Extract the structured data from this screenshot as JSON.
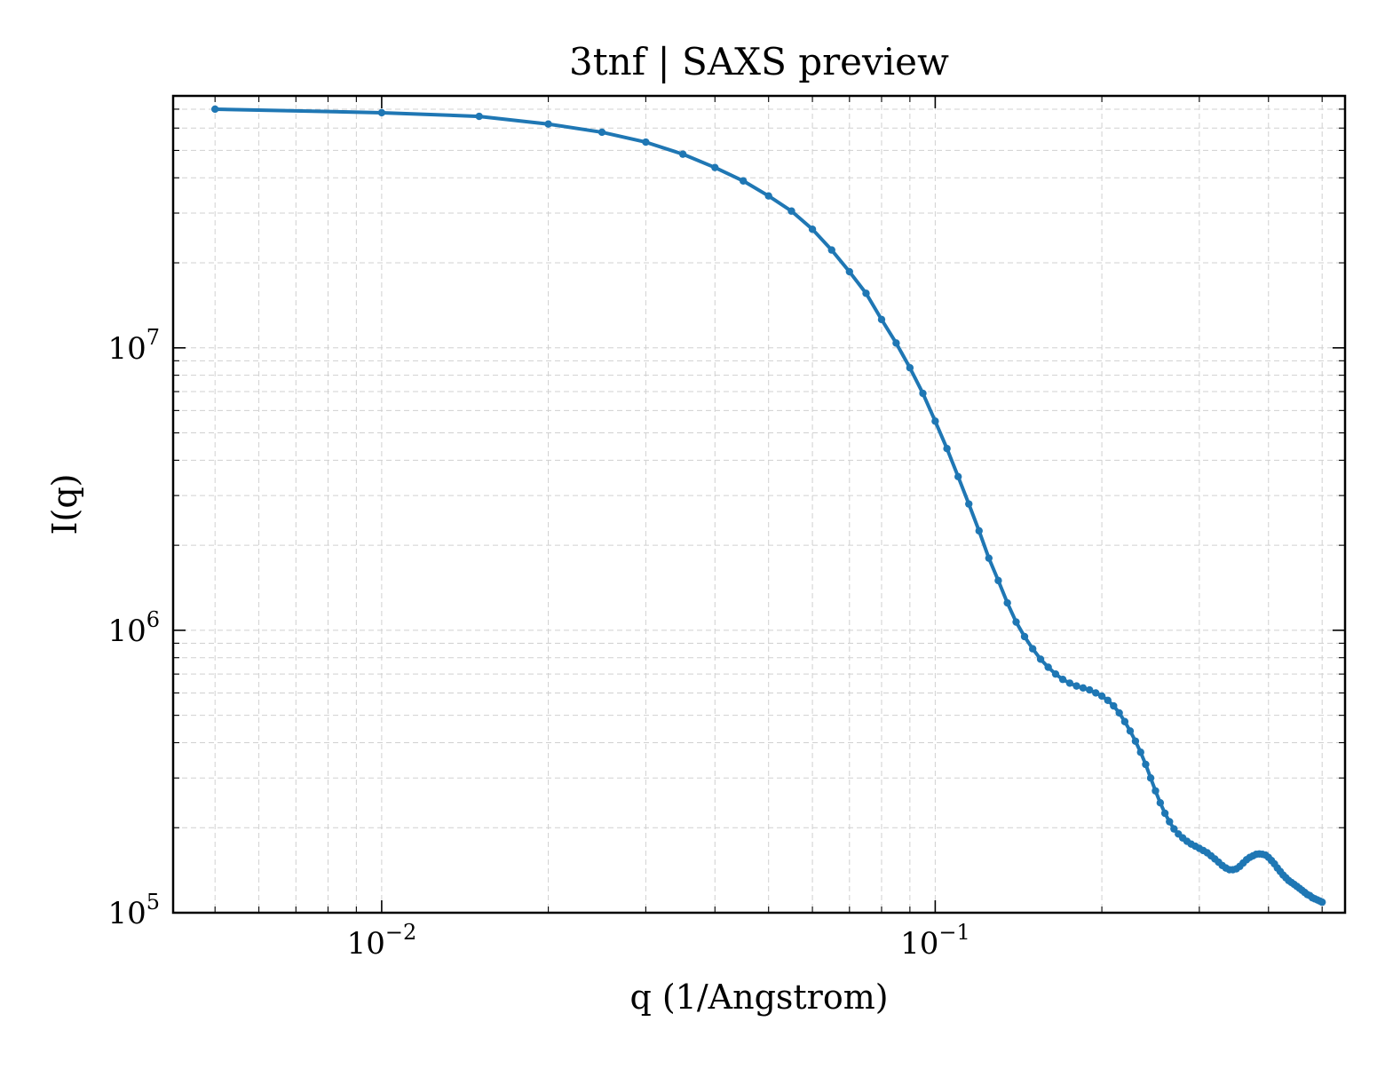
{
  "chart_data": {
    "type": "line",
    "title": "3tnf | SAXS preview",
    "xlabel": "q (1/Angstrom)",
    "ylabel": "I(q)",
    "xscale": "log",
    "yscale": "log",
    "xlim": [
      0.0042,
      0.55
    ],
    "ylim": [
      100000,
      78000000
    ],
    "grid": "on",
    "tick_direction": "in",
    "x_tick_labels": [
      {
        "value": 0.01,
        "base": "10",
        "exp": "−2"
      },
      {
        "value": 0.1,
        "base": "10",
        "exp": "−1"
      }
    ],
    "y_tick_labels": [
      {
        "value": 100000,
        "base": "10",
        "exp": "5"
      },
      {
        "value": 1000000,
        "base": "10",
        "exp": "6"
      },
      {
        "value": 10000000,
        "base": "10",
        "exp": "7"
      }
    ],
    "series": [
      {
        "color": "#1f77b4",
        "marker": "circle",
        "x": [
          0.005,
          0.01,
          0.015,
          0.02,
          0.025,
          0.03,
          0.035,
          0.04,
          0.045,
          0.05,
          0.055,
          0.06,
          0.065,
          0.07,
          0.075,
          0.08,
          0.085,
          0.09,
          0.095,
          0.1,
          0.105,
          0.11,
          0.115,
          0.12,
          0.125,
          0.13,
          0.135,
          0.14,
          0.145,
          0.15,
          0.155,
          0.16,
          0.165,
          0.17,
          0.175,
          0.18,
          0.185,
          0.19,
          0.195,
          0.2,
          0.205,
          0.21,
          0.215,
          0.22,
          0.225,
          0.23,
          0.235,
          0.24,
          0.245,
          0.25,
          0.255,
          0.26,
          0.265,
          0.27,
          0.275,
          0.28,
          0.285,
          0.29,
          0.295,
          0.3,
          0.305,
          0.31,
          0.315,
          0.32,
          0.325,
          0.33,
          0.335,
          0.34,
          0.345,
          0.35,
          0.355,
          0.36,
          0.365,
          0.37,
          0.375,
          0.38,
          0.385,
          0.39,
          0.395,
          0.4,
          0.405,
          0.41,
          0.415,
          0.42,
          0.425,
          0.43,
          0.435,
          0.44,
          0.445,
          0.45,
          0.455,
          0.46,
          0.465,
          0.47,
          0.475,
          0.48,
          0.485,
          0.49,
          0.495,
          0.5
        ],
        "y": [
          70000000,
          68000000,
          66000000,
          62000000,
          58000000,
          53500000,
          48500000,
          43500000,
          39000000,
          34500000,
          30500000,
          26300000,
          22200000,
          18600000,
          15600000,
          12600000,
          10400000,
          8500000,
          6900000,
          5500000,
          4400000,
          3500000,
          2800000,
          2250000,
          1800000,
          1500000,
          1250000,
          1070000,
          950000,
          860000,
          790000,
          740000,
          700000,
          670000,
          650000,
          635000,
          625000,
          615000,
          600000,
          585000,
          565000,
          540000,
          510000,
          475000,
          440000,
          405000,
          370000,
          335000,
          300000,
          270000,
          245000,
          225000,
          210000,
          198000,
          190000,
          184000,
          179000,
          175000,
          172000,
          169000,
          166000,
          163000,
          159000,
          155000,
          151000,
          147000,
          144000,
          142000,
          142000,
          143000,
          146000,
          150000,
          154000,
          157000,
          159000,
          161000,
          161500,
          161000,
          160000,
          157000,
          153000,
          149000,
          144000,
          140000,
          136000,
          133000,
          130000,
          128000,
          126000,
          124000,
          122000,
          120000,
          118000,
          116000,
          115000,
          113000,
          112000,
          111000,
          110000,
          109000
        ]
      }
    ]
  }
}
